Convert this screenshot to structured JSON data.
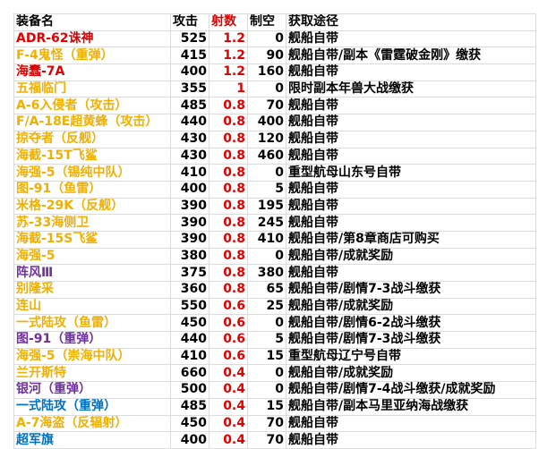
{
  "headers": [
    "装备名",
    "攻击",
    "射数",
    "制空",
    "获取途径"
  ],
  "colors": {
    "red": "#e00000",
    "gold": "#f0b000",
    "purple": "#7030a0",
    "blue": "#0070c0",
    "black": "#000000"
  },
  "rows": [
    {
      "name": "ADR-62诛神",
      "color": "red",
      "attack": "525",
      "shots": "1.2",
      "air": "0",
      "source": "舰船自带"
    },
    {
      "name": "F-4鬼怪（重弹）",
      "color": "gold",
      "attack": "415",
      "shots": "1.2",
      "air": "90",
      "source": "舰船自带/副本《雷霆破金刚》缴获"
    },
    {
      "name": "海蠢-7A",
      "color": "red",
      "attack": "400",
      "shots": "1.2",
      "air": "160",
      "source": "舰船自带"
    },
    {
      "name": "五福临门",
      "color": "gold",
      "attack": "355",
      "shots": "1",
      "air": "0",
      "source": "限时副本年兽大战缴获"
    },
    {
      "name": "A-6入侵者（攻击）",
      "color": "gold",
      "attack": "485",
      "shots": "0.8",
      "air": "70",
      "source": "舰船自带"
    },
    {
      "name": "F/A-18E超黄蜂（攻击）",
      "color": "gold",
      "attack": "440",
      "shots": "0.8",
      "air": "400",
      "source": "舰船自带"
    },
    {
      "name": "掠夺者（反舰）",
      "color": "gold",
      "attack": "430",
      "shots": "0.8",
      "air": "120",
      "source": "舰船自带"
    },
    {
      "name": "海截-15T飞鲨",
      "color": "gold",
      "attack": "430",
      "shots": "0.8",
      "air": "460",
      "source": "舰船自带"
    },
    {
      "name": "海强-5（锡纯中队）",
      "color": "gold",
      "attack": "410",
      "shots": "0.8",
      "air": "0",
      "source": "重型航母山东号自带"
    },
    {
      "name": "图-91（鱼雷）",
      "color": "gold",
      "attack": "400",
      "shots": "0.8",
      "air": "5",
      "source": "舰船自带"
    },
    {
      "name": "米格-29K（反舰）",
      "color": "gold",
      "attack": "390",
      "shots": "0.8",
      "air": "195",
      "source": "舰船自带"
    },
    {
      "name": "苏-33海侧卫",
      "color": "gold",
      "attack": "390",
      "shots": "0.8",
      "air": "245",
      "source": "舰船自带"
    },
    {
      "name": "海截-15S飞鲨",
      "color": "gold",
      "attack": "390",
      "shots": "0.8",
      "air": "410",
      "source": "舰船自带/第8章商店可购买"
    },
    {
      "name": "海强-5",
      "color": "gold",
      "attack": "380",
      "shots": "0.8",
      "air": "0",
      "source": "舰船自带/成就奖励"
    },
    {
      "name": "阵风Ⅲ",
      "color": "purple",
      "attack": "375",
      "shots": "0.8",
      "air": "380",
      "source": "舰船自带"
    },
    {
      "name": "别隆采",
      "color": "gold",
      "attack": "360",
      "shots": "0.8",
      "air": "65",
      "source": "舰船自带/剧情7-3战斗缴获"
    },
    {
      "name": "连山",
      "color": "gold",
      "attack": "550",
      "shots": "0.6",
      "air": "25",
      "source": "舰船自带/成就奖励"
    },
    {
      "name": "一式陆攻（鱼雷）",
      "color": "gold",
      "attack": "450",
      "shots": "0.6",
      "air": "0",
      "source": "舰船自带/剧情6-2战斗缴获"
    },
    {
      "name": "图-91（重弹）",
      "color": "purple",
      "attack": "440",
      "shots": "0.6",
      "air": "5",
      "source": "舰船自带/剧情7-3战斗缴获"
    },
    {
      "name": "海强-5（崇海中队）",
      "color": "gold",
      "attack": "410",
      "shots": "0.6",
      "air": "15",
      "source": "重型航母辽宁号自带"
    },
    {
      "name": "兰开斯特",
      "color": "gold",
      "attack": "660",
      "shots": "0.4",
      "air": "0",
      "source": "舰船自带/成就奖励"
    },
    {
      "name": "银河（重弹）",
      "color": "purple",
      "attack": "500",
      "shots": "0.4",
      "air": "0",
      "source": "舰船自带/剧情7-4战斗缴获/成就奖励"
    },
    {
      "name": "一式陆攻（重弹）",
      "color": "blue",
      "attack": "485",
      "shots": "0.4",
      "air": "15",
      "source": "舰船自带/副本马里亚纳海战缴获"
    },
    {
      "name": "A-7海盗（反辐射）",
      "color": "gold",
      "attack": "450",
      "shots": "0.4",
      "air": "70",
      "source": "舰船自带"
    },
    {
      "name": "超军旗",
      "color": "blue",
      "attack": "400",
      "shots": "0.4",
      "air": "70",
      "source": "舰船自带"
    }
  ]
}
